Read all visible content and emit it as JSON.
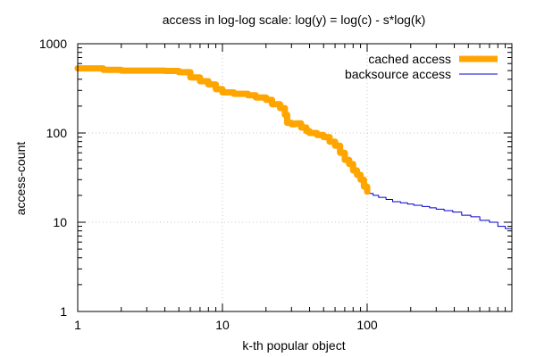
{
  "chart_data": {
    "type": "line",
    "title": "access in log-log scale: log(y) = log(c) - s*log(k)",
    "xlabel": "k-th popular object",
    "ylabel": "access-count",
    "xscale": "log",
    "yscale": "log",
    "xlim": [
      1,
      1000
    ],
    "ylim": [
      1,
      1000
    ],
    "x_ticks": [
      1,
      10,
      100
    ],
    "x_tick_labels": [
      "1",
      "10",
      "100"
    ],
    "y_ticks": [
      1,
      10,
      100,
      1000
    ],
    "y_tick_labels": [
      "1",
      "10",
      "100",
      "1000"
    ],
    "grid": true,
    "legend_position": "top-right",
    "series": [
      {
        "name": "cached access",
        "color": "#ffa500",
        "x": [
          1,
          1.5,
          2,
          3,
          4,
          5,
          6,
          7,
          8,
          9,
          10,
          12,
          15,
          17,
          20,
          22,
          25,
          27,
          28,
          30,
          32,
          35,
          38,
          40,
          45,
          50,
          55,
          60,
          65,
          70,
          75,
          80,
          85,
          90,
          95,
          100
        ],
        "y": [
          530,
          510,
          500,
          500,
          495,
          480,
          420,
          380,
          350,
          310,
          285,
          275,
          265,
          250,
          235,
          210,
          190,
          160,
          130,
          125,
          128,
          115,
          105,
          100,
          95,
          90,
          80,
          72,
          60,
          50,
          45,
          38,
          34,
          30,
          25,
          22
        ]
      },
      {
        "name": "backsource access",
        "color": "#0000cc",
        "x": [
          100,
          110,
          120,
          135,
          150,
          170,
          190,
          210,
          240,
          270,
          300,
          340,
          390,
          450,
          520,
          600,
          700,
          800,
          900,
          1000
        ],
        "y": [
          21,
          20,
          19,
          18,
          17,
          16.5,
          16,
          15.5,
          15,
          14.5,
          14,
          13.5,
          13,
          12,
          11.5,
          10.5,
          10,
          9,
          8.5,
          8
        ]
      }
    ]
  }
}
